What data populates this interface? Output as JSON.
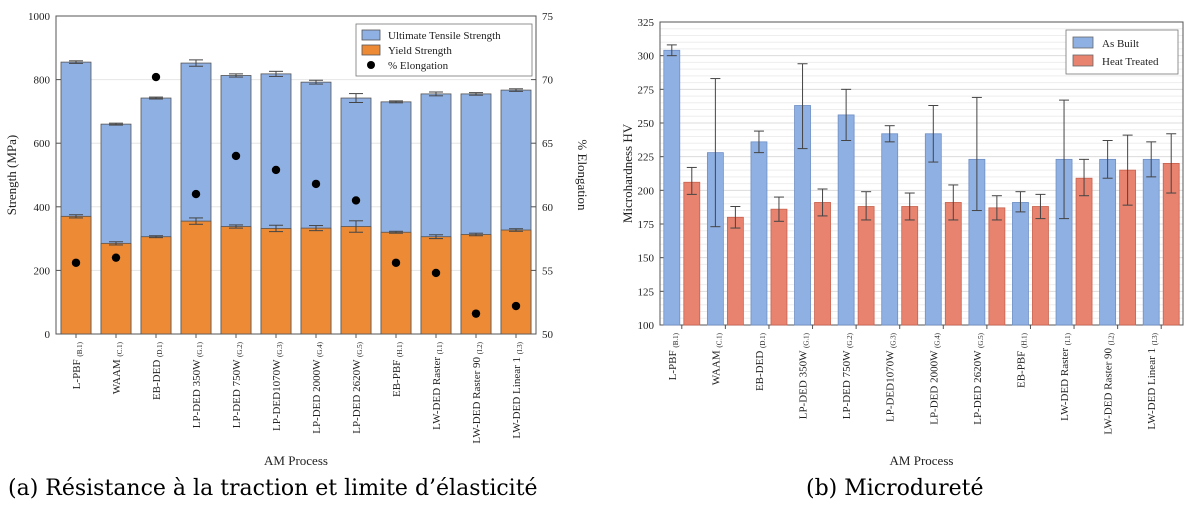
{
  "charts": [
    {
      "id": "a",
      "caption": "(a) Résistance à la traction et limite d’élasticité",
      "xlabel": "AM Process",
      "ylabel_left": "Strength (MPa)",
      "ylabel_right": "% Elongation",
      "legend": [
        {
          "label": "Ultimate Tensile Strength",
          "color": "#8fb0e3",
          "kind": "box"
        },
        {
          "label": "Yield Strength",
          "color": "#ec8a35",
          "kind": "box"
        },
        {
          "label": "% Elongation",
          "color": "#000000",
          "kind": "dot"
        }
      ]
    },
    {
      "id": "b",
      "caption": "(b) Microdureté",
      "xlabel": "AM Process",
      "ylabel": "Microhardness HV",
      "legend": [
        {
          "label": "As Built",
          "color": "#8fb0e3",
          "kind": "box"
        },
        {
          "label": "Heat Treated",
          "color": "#e8836f",
          "kind": "box"
        }
      ]
    }
  ],
  "chart_data": [
    {
      "type": "bar",
      "stacked_overlay": true,
      "categories": [
        {
          "name": "L-PBF",
          "sub": "(B.1)"
        },
        {
          "name": "WAAM",
          "sub": "(C.1)"
        },
        {
          "name": "EB-DED",
          "sub": "(D.1)"
        },
        {
          "name": "LP-DED 350W",
          "sub": "(G.1)"
        },
        {
          "name": "LP-DED 750W",
          "sub": "(G.2)"
        },
        {
          "name": "LP-DED1070W",
          "sub": "(G.3)"
        },
        {
          "name": "LP-DED 2000W",
          "sub": "(G.4)"
        },
        {
          "name": "LP-DED 2620W",
          "sub": "(G.5)"
        },
        {
          "name": "EB-PBF",
          "sub": "(H.1)"
        },
        {
          "name": "LW-DED Raster",
          "sub": "(I.1)"
        },
        {
          "name": "LW-DED Raster 90",
          "sub": "(I.2)"
        },
        {
          "name": "LW-DED Linear 1",
          "sub": "(I.3)"
        }
      ],
      "series": [
        {
          "name": "Ultimate Tensile Strength",
          "axis": "left",
          "values": [
            855,
            660,
            742,
            852,
            813,
            818,
            792,
            742,
            730,
            755,
            755,
            767
          ],
          "errors": [
            4,
            3,
            3,
            10,
            5,
            8,
            6,
            14,
            3,
            6,
            4,
            4
          ]
        },
        {
          "name": "Yield Strength",
          "axis": "left",
          "values": [
            370,
            285,
            306,
            355,
            338,
            332,
            333,
            338,
            320,
            306,
            313,
            327
          ],
          "errors": [
            5,
            5,
            3,
            10,
            5,
            10,
            8,
            18,
            3,
            6,
            4,
            4
          ]
        },
        {
          "name": "% Elongation",
          "axis": "right",
          "kind": "scatter",
          "values": [
            55.6,
            56.0,
            70.2,
            61.0,
            64.0,
            62.9,
            61.8,
            60.5,
            55.6,
            54.8,
            51.6,
            52.2
          ]
        }
      ],
      "ylim_left": [
        0,
        1000
      ],
      "yticks_left": [
        "0",
        "200",
        "400",
        "600",
        "800",
        "1000"
      ],
      "ylim_right": [
        50,
        75
      ],
      "yticks_right": [
        "50",
        "55",
        "60",
        "65",
        "70",
        "75"
      ],
      "legend_position": "top-right",
      "grid": true
    },
    {
      "type": "bar",
      "categories": [
        {
          "name": "L-PBF",
          "sub": "(B.1)"
        },
        {
          "name": "WAAM",
          "sub": "(C.1)"
        },
        {
          "name": "EB-DED",
          "sub": "(D.1)"
        },
        {
          "name": "LP-DED 350W",
          "sub": "(G.1)"
        },
        {
          "name": "LP-DED 750W",
          "sub": "(G.2)"
        },
        {
          "name": "LP-DED1070W",
          "sub": "(G.3)"
        },
        {
          "name": "LP-DED 2000W",
          "sub": "(G.4)"
        },
        {
          "name": "LP-DED 2620W",
          "sub": "(G.5)"
        },
        {
          "name": "EB-PBF",
          "sub": "(H.1)"
        },
        {
          "name": "LW-DED Raster",
          "sub": "(I.1)"
        },
        {
          "name": "LW-DED Raster 90",
          "sub": "(I.2)"
        },
        {
          "name": "LW-DED Linear 1",
          "sub": "(I.3)"
        }
      ],
      "series": [
        {
          "name": "As Built",
          "values": [
            304,
            228,
            236,
            263,
            256,
            242,
            242,
            223,
            191,
            223,
            223,
            223
          ],
          "err_low": [
            300,
            173,
            228,
            231,
            237,
            236,
            221,
            185,
            184,
            179,
            209,
            210
          ],
          "err_high": [
            308,
            283,
            244,
            294,
            275,
            248,
            263,
            269,
            199,
            267,
            237,
            236
          ]
        },
        {
          "name": "Heat Treated",
          "values": [
            206,
            180,
            186,
            191,
            188,
            188,
            191,
            187,
            188,
            209,
            215,
            220
          ],
          "err_low": [
            197,
            172,
            177,
            181,
            178,
            178,
            178,
            178,
            179,
            196,
            189,
            198
          ],
          "err_high": [
            217,
            188,
            195,
            201,
            199,
            198,
            204,
            196,
            197,
            223,
            241,
            242
          ]
        }
      ],
      "ylim": [
        100,
        325
      ],
      "yticks": [
        "100",
        "125",
        "150",
        "175",
        "200",
        "225",
        "250",
        "275",
        "300",
        "325"
      ],
      "legend_position": "top-right",
      "grid": true
    }
  ]
}
